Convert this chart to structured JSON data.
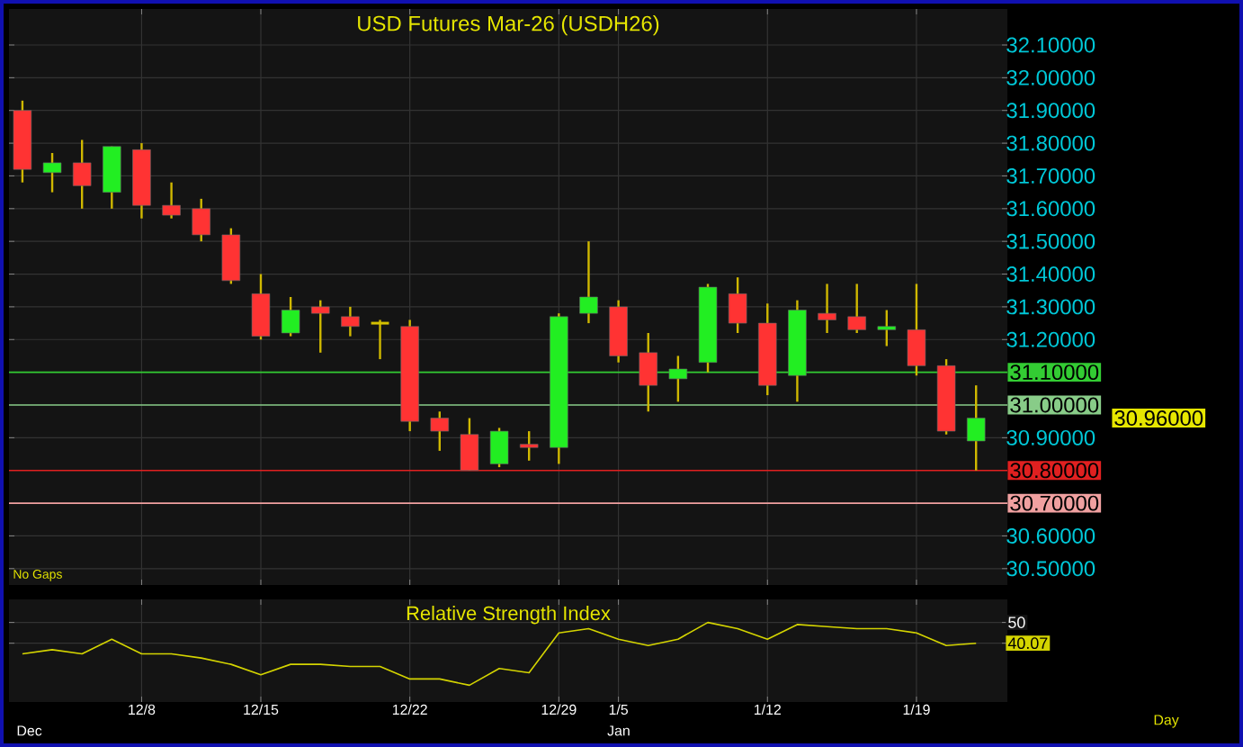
{
  "chart_data": [
    {
      "type": "candlestick",
      "title": "USD Futures Mar-26 (USDH26)",
      "categories": [
        null,
        null,
        null,
        null,
        null,
        null,
        null,
        null,
        null,
        null,
        null,
        null,
        null,
        null,
        null,
        null,
        null,
        null,
        null,
        null,
        null,
        null,
        null,
        null,
        null,
        null,
        null,
        null,
        null,
        null,
        null,
        null,
        null
      ],
      "ohlc": [
        [
          31.9,
          31.93,
          31.68,
          31.72
        ],
        [
          31.71,
          31.77,
          31.65,
          31.74
        ],
        [
          31.74,
          31.81,
          31.6,
          31.67
        ],
        [
          31.65,
          31.79,
          31.6,
          31.79
        ],
        [
          31.78,
          31.8,
          31.57,
          31.61
        ],
        [
          31.61,
          31.68,
          31.57,
          31.58
        ],
        [
          31.6,
          31.63,
          31.5,
          31.52
        ],
        [
          31.52,
          31.54,
          31.37,
          31.38
        ],
        [
          31.34,
          31.4,
          31.2,
          31.21
        ],
        [
          31.22,
          31.33,
          31.21,
          31.29
        ],
        [
          31.3,
          31.32,
          31.16,
          31.28
        ],
        [
          31.27,
          31.3,
          31.21,
          31.24
        ],
        [
          31.25,
          31.26,
          31.14,
          31.25
        ],
        [
          31.24,
          31.26,
          30.92,
          30.95
        ],
        [
          30.96,
          30.98,
          30.86,
          30.92
        ],
        [
          30.91,
          30.96,
          30.8,
          30.8
        ],
        [
          30.82,
          30.93,
          30.81,
          30.92
        ],
        [
          30.88,
          30.92,
          30.83,
          30.87
        ],
        [
          30.87,
          31.28,
          30.82,
          31.27
        ],
        [
          31.28,
          31.5,
          31.25,
          31.33
        ],
        [
          31.3,
          31.32,
          31.13,
          31.15
        ],
        [
          31.16,
          31.22,
          30.98,
          31.06
        ],
        [
          31.08,
          31.15,
          31.01,
          31.11
        ],
        [
          31.13,
          31.37,
          31.1,
          31.36
        ],
        [
          31.34,
          31.39,
          31.22,
          31.25
        ],
        [
          31.25,
          31.31,
          31.03,
          31.06
        ],
        [
          31.09,
          31.32,
          31.01,
          31.29
        ],
        [
          31.28,
          31.37,
          31.22,
          31.26
        ],
        [
          31.27,
          31.37,
          31.22,
          31.23
        ],
        [
          31.23,
          31.29,
          31.18,
          31.24
        ],
        [
          31.23,
          31.37,
          31.09,
          31.12
        ],
        [
          31.12,
          31.14,
          30.91,
          30.92
        ],
        [
          30.89,
          31.06,
          30.8,
          30.96
        ]
      ],
      "colors": [
        "#ff3333",
        "#22ee22",
        "#ff3333",
        "#22ee22",
        "#ff3333",
        "#ff3333",
        "#ff3333",
        "#ff3333",
        "#ff3333",
        "#22ee22",
        "#ff3333",
        "#ff3333",
        "#d4c000",
        "#ff3333",
        "#ff3333",
        "#ff3333",
        "#22ee22",
        "#ff3333",
        "#22ee22",
        "#22ee22",
        "#ff3333",
        "#ff3333",
        "#22ee22",
        "#22ee22",
        "#ff3333",
        "#ff3333",
        "#22ee22",
        "#ff3333",
        "#ff3333",
        "#22ee22",
        "#ff3333",
        "#ff3333",
        "#22ee22"
      ],
      "ylim": [
        30.45,
        32.21
      ],
      "yticks": [
        {
          "value": 30.5,
          "label": "30.50000"
        },
        {
          "value": 30.6,
          "label": "30.60000"
        },
        {
          "value": 30.9,
          "label": "30.90000"
        },
        {
          "value": 31.2,
          "label": "31.20000"
        },
        {
          "value": 31.3,
          "label": "31.30000"
        },
        {
          "value": 31.4,
          "label": "31.40000"
        },
        {
          "value": 31.5,
          "label": "31.50000"
        },
        {
          "value": 31.6,
          "label": "31.60000"
        },
        {
          "value": 31.7,
          "label": "31.70000"
        },
        {
          "value": 31.8,
          "label": "31.80000"
        },
        {
          "value": 31.9,
          "label": "31.90000"
        },
        {
          "value": 32.0,
          "label": "32.00000"
        },
        {
          "value": 32.1,
          "label": "32.10000"
        }
      ],
      "grid": true,
      "tick_labels": "y",
      "ref_lines": [
        {
          "axis": "y",
          "value": 31.1,
          "label": "31.10000",
          "color": "#33cc33"
        },
        {
          "axis": "y",
          "value": 31.0,
          "label": "31.00000",
          "color": "#88cc88"
        },
        {
          "axis": "y",
          "value": 30.8,
          "label": "30.80000",
          "color": "#e02020"
        },
        {
          "axis": "y",
          "value": 30.7,
          "label": "30.70000",
          "color": "#f0a0a0"
        }
      ],
      "annotations": [
        "No Gaps",
        "30.96000"
      ]
    },
    {
      "type": "line",
      "title": "Relative Strength Index",
      "categories": [
        null,
        null,
        null,
        null,
        "12/8",
        null,
        null,
        null,
        "12/15",
        null,
        null,
        null,
        null,
        "12/22",
        null,
        null,
        null,
        null,
        "12/29",
        null,
        "1/5",
        null,
        null,
        null,
        null,
        "1/12",
        null,
        null,
        null,
        null,
        "1/19",
        null,
        null
      ],
      "series": [
        {
          "color": "#d4d400",
          "values": [
            35,
            37,
            35,
            42,
            35,
            35,
            33,
            30,
            25,
            30,
            30,
            29,
            29,
            23,
            23,
            20,
            28,
            26,
            45,
            47,
            42,
            39,
            42,
            50,
            47,
            42,
            49,
            48,
            47,
            47,
            45,
            39,
            40.07
          ]
        }
      ],
      "ylim": [
        12,
        61
      ],
      "yticks": [
        50,
        {
          "value": 40.07,
          "label": "40.07"
        }
      ],
      "grid": true,
      "annotations": [
        "Dec",
        "Jan",
        "Day"
      ]
    }
  ]
}
